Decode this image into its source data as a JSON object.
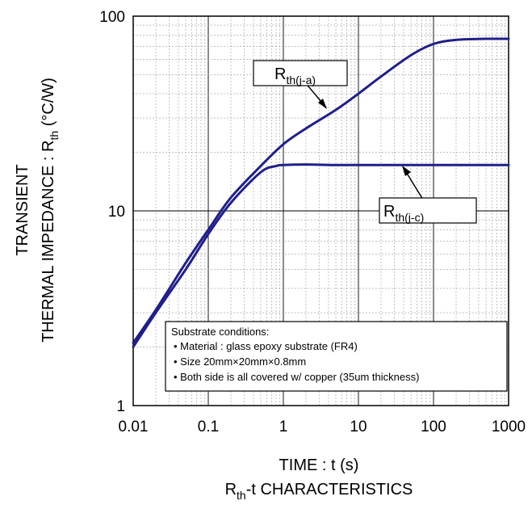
{
  "chart_data": {
    "type": "line",
    "x_scale": "log",
    "y_scale": "log",
    "xlim": [
      0.01,
      1000
    ],
    "ylim": [
      1,
      100
    ],
    "grid": true,
    "x_ticks": [
      "0.01",
      "0.1",
      "1",
      "10",
      "100",
      "1000"
    ],
    "y_ticks": [
      "1",
      "10",
      "100"
    ],
    "xlabel": "TIME : t (s)",
    "ylabel": {
      "line1": "TRANSIENT",
      "line2_prefix": "THERMAL IMPEDANCE : R",
      "line2_sub": "th",
      "line2_suffix": " (°C/W)"
    },
    "caption": {
      "prefix": "R",
      "sub": "th",
      "suffix": "-t CHARACTERISTICS"
    },
    "series": [
      {
        "name": "Rth(j-a)",
        "label_main": "R",
        "label_sub": "th(j-a)",
        "color": "#1f1f8c",
        "x": [
          0.01,
          0.02,
          0.05,
          0.1,
          0.2,
          0.5,
          1,
          2,
          5,
          10,
          20,
          50,
          100,
          200,
          500,
          1000
        ],
        "y": [
          2.1,
          3.1,
          5.4,
          8.0,
          11.7,
          17.0,
          22.0,
          26.5,
          33.0,
          40.0,
          49.0,
          63.0,
          72.0,
          75.5,
          76.5,
          76.5
        ]
      },
      {
        "name": "Rth(j-c)",
        "label_main": "R",
        "label_sub": "th(j-c)",
        "color": "#1f1f8c",
        "x": [
          0.01,
          0.02,
          0.05,
          0.1,
          0.2,
          0.5,
          0.8,
          1,
          2,
          5,
          10,
          100,
          1000
        ],
        "y": [
          2.0,
          3.0,
          5.0,
          7.6,
          11.0,
          15.8,
          17.0,
          17.2,
          17.3,
          17.2,
          17.2,
          17.2,
          17.2
        ]
      }
    ],
    "annotation": {
      "title": "Substrate conditions:",
      "lines": [
        "• Material : glass epoxy substrate (FR4)",
        "• Size 20mm×20mm×0.8mm",
        "• Both side is all covered w/ copper (35um thickness)"
      ]
    }
  }
}
